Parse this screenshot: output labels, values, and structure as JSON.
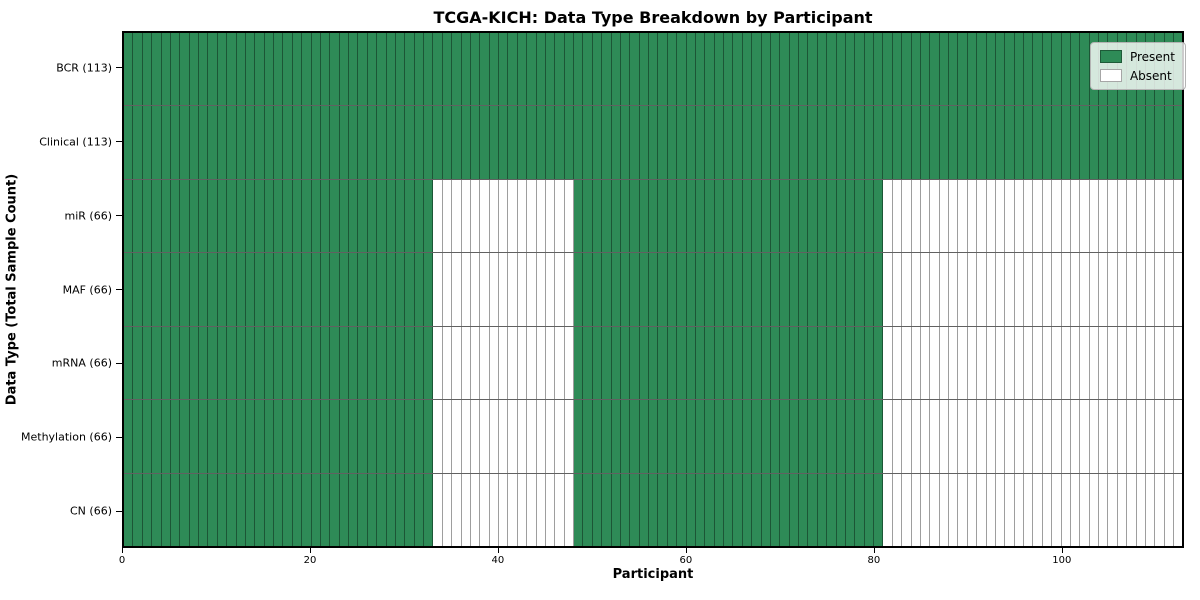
{
  "title": "TCGA-KICH: Data Type Breakdown by Participant",
  "xlabel": "Participant",
  "ylabel": "Data Type (Total Sample Count)",
  "legend": {
    "present_label": "Present",
    "absent_label": "Absent"
  },
  "colors": {
    "present": "#2e8b57",
    "absent": "#ffffff"
  },
  "chart_data": {
    "type": "heatmap",
    "title": "TCGA-KICH: Data Type Breakdown by Participant",
    "xlabel": "Participant",
    "ylabel": "Data Type (Total Sample Count)",
    "n_participants": 113,
    "xlim": [
      0,
      113
    ],
    "x_ticks": [
      0,
      20,
      40,
      60,
      80,
      100
    ],
    "legend_entries": [
      "Present",
      "Absent"
    ],
    "legend_position": "upper right",
    "grid": false,
    "rows": [
      {
        "label": "BCR (113)",
        "total": 113,
        "present_ranges": [
          [
            0,
            113
          ]
        ]
      },
      {
        "label": "Clinical (113)",
        "total": 113,
        "present_ranges": [
          [
            0,
            113
          ]
        ]
      },
      {
        "label": "miR (66)",
        "total": 66,
        "present_ranges": [
          [
            0,
            33
          ],
          [
            48,
            81
          ]
        ]
      },
      {
        "label": "MAF (66)",
        "total": 66,
        "present_ranges": [
          [
            0,
            33
          ],
          [
            48,
            81
          ]
        ]
      },
      {
        "label": "mRNA (66)",
        "total": 66,
        "present_ranges": [
          [
            0,
            33
          ],
          [
            48,
            81
          ]
        ]
      },
      {
        "label": "Methylation (66)",
        "total": 66,
        "present_ranges": [
          [
            0,
            33
          ],
          [
            48,
            81
          ]
        ]
      },
      {
        "label": "CN (66)",
        "total": 66,
        "present_ranges": [
          [
            0,
            33
          ],
          [
            48,
            81
          ]
        ]
      }
    ]
  }
}
